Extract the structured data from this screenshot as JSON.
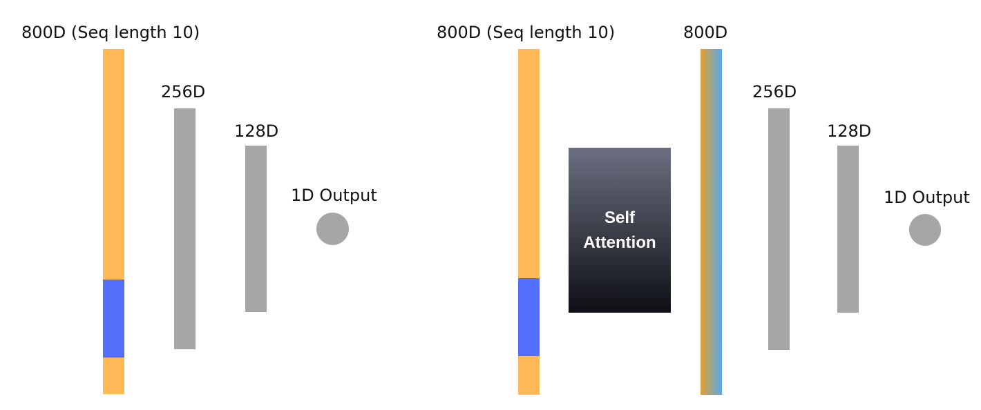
{
  "colors": {
    "sequence_token": "#ffba57",
    "highlighted_token": "#546ffe",
    "dense_layer": "#a6a6a6",
    "output_node": "#a6a6a6",
    "attention_gradient": [
      "#6b6f80",
      "#0d0f14"
    ],
    "attended_gradient": [
      "#e2a12e",
      "#58a8ef"
    ]
  },
  "left": {
    "input_label": "800D (Seq length 10)",
    "input_highlight_fraction": [
      0.667,
      0.893
    ],
    "layer1_label": "256D",
    "layer2_label": "128D",
    "output_label": "1D Output"
  },
  "right": {
    "input_label": "800D (Seq length 10)",
    "input_highlight_fraction": [
      0.663,
      0.888
    ],
    "attention_label": "Self Attention",
    "attended_label": "800D",
    "layer1_label": "256D",
    "layer2_label": "128D",
    "output_label": "1D Output"
  }
}
